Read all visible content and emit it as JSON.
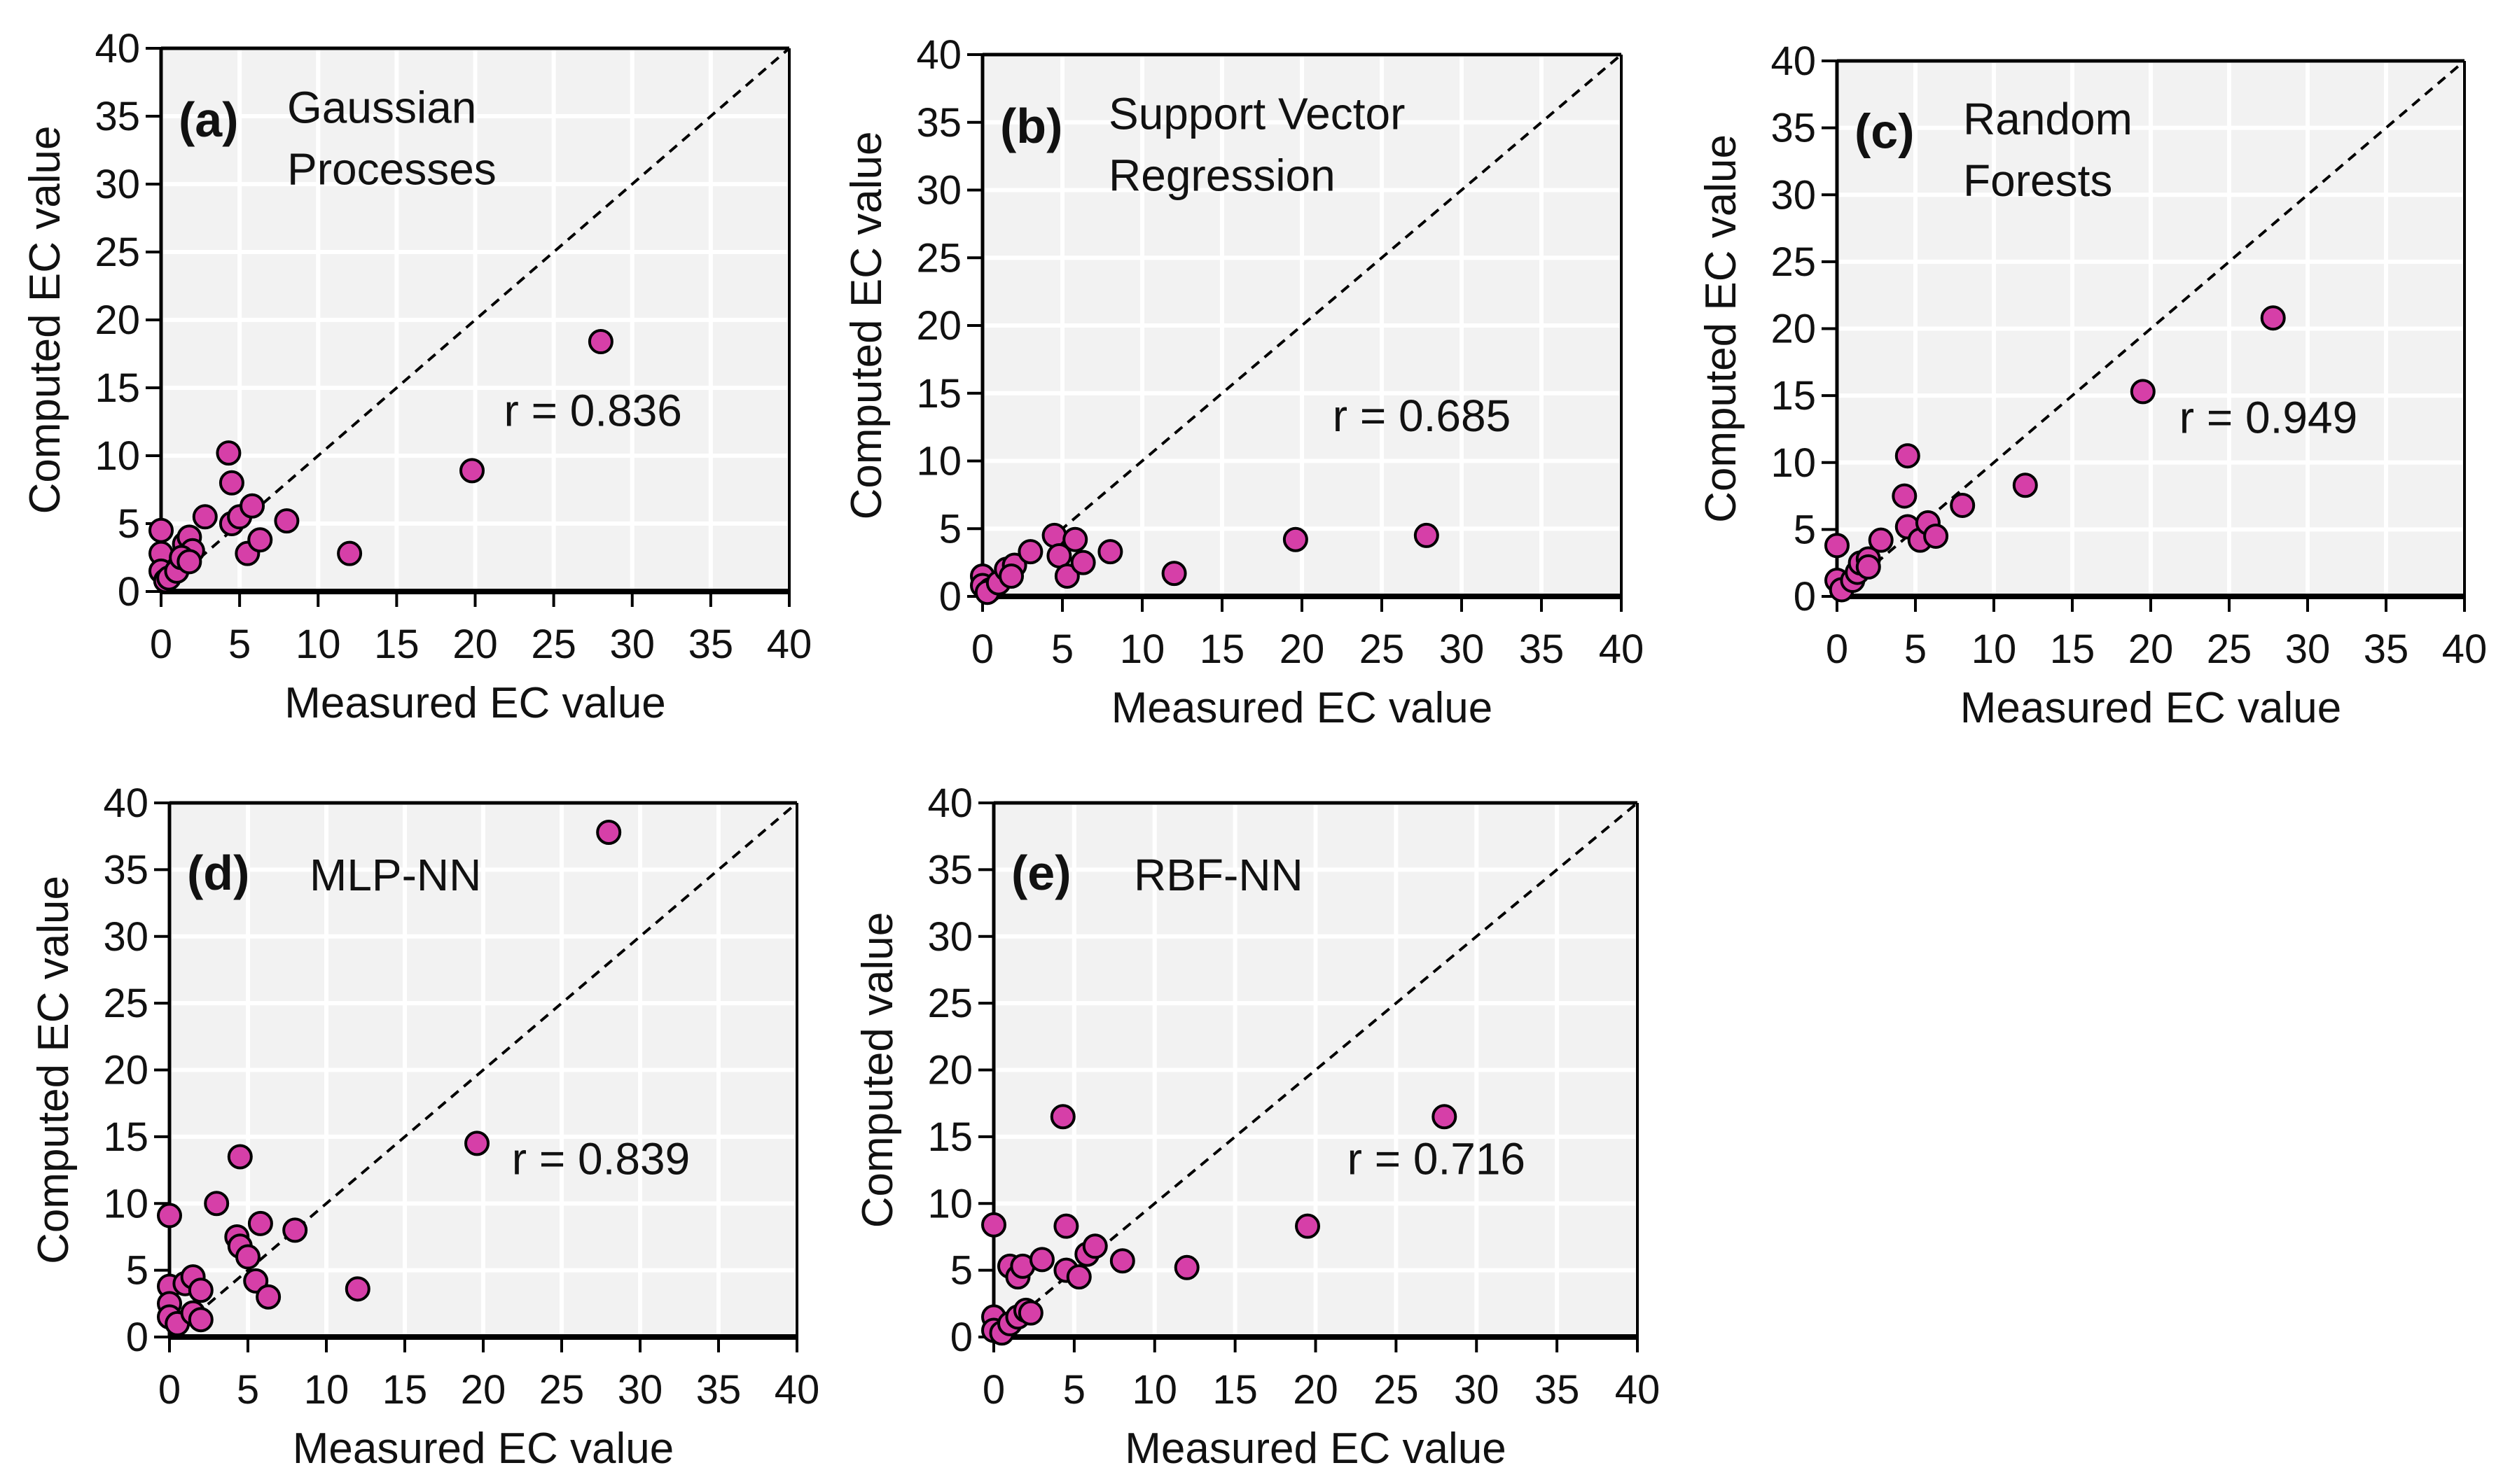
{
  "chart_data": [
    {
      "type": "scatter",
      "panel": "(a)",
      "title_lines": [
        "Gaussian",
        "Processes"
      ],
      "r_label": "r = 0.836",
      "xlabel": "Measured EC value",
      "ylabel": "Computed EC value",
      "xlim": [
        0,
        40
      ],
      "ylim": [
        0,
        40
      ],
      "ticks": [
        0,
        5,
        10,
        15,
        20,
        25,
        30,
        35,
        40
      ],
      "reference_line": "y = x (dashed)",
      "grid": true,
      "points": [
        [
          0,
          4.5
        ],
        [
          0,
          2.8
        ],
        [
          0,
          1.5
        ],
        [
          0.3,
          0.8
        ],
        [
          0.5,
          1
        ],
        [
          1,
          1.5
        ],
        [
          1.5,
          3.5
        ],
        [
          1.8,
          4
        ],
        [
          2,
          3
        ],
        [
          1.3,
          2.5
        ],
        [
          1.8,
          2.2
        ],
        [
          2.8,
          5.5
        ],
        [
          4.3,
          10.2
        ],
        [
          4.5,
          8
        ],
        [
          4.5,
          5
        ],
        [
          5,
          5.5
        ],
        [
          5.5,
          2.8
        ],
        [
          5.8,
          6.3
        ],
        [
          6.3,
          3.8
        ],
        [
          8,
          5.2
        ],
        [
          12,
          2.8
        ],
        [
          19.8,
          8.9
        ],
        [
          28,
          18.4
        ]
      ]
    },
    {
      "type": "scatter",
      "panel": "(b)",
      "title_lines": [
        "Support Vector",
        "Regression"
      ],
      "r_label": "r = 0.685",
      "xlabel": "Measured EC value",
      "ylabel": "Computed EC value",
      "xlim": [
        0,
        40
      ],
      "ylim": [
        0,
        40
      ],
      "ticks": [
        0,
        5,
        10,
        15,
        20,
        25,
        30,
        35,
        40
      ],
      "reference_line": "y = x (dashed)",
      "grid": true,
      "points": [
        [
          0,
          1.5
        ],
        [
          0,
          0.8
        ],
        [
          0.5,
          0.5
        ],
        [
          0.3,
          0.3
        ],
        [
          1,
          1
        ],
        [
          1.5,
          2
        ],
        [
          2,
          2.3
        ],
        [
          1.8,
          1.5
        ],
        [
          3,
          3.3
        ],
        [
          4.5,
          4.5
        ],
        [
          4.8,
          3
        ],
        [
          5.3,
          1.5
        ],
        [
          5.8,
          4.2
        ],
        [
          6.3,
          2.5
        ],
        [
          8,
          3.3
        ],
        [
          12,
          1.7
        ],
        [
          19.6,
          4.2
        ],
        [
          27.8,
          4.5
        ]
      ]
    },
    {
      "type": "scatter",
      "panel": "(c)",
      "title_lines": [
        "Random",
        "Forests"
      ],
      "r_label": "r = 0.949",
      "xlabel": "Measured EC value",
      "ylabel": "Computed EC value",
      "xlim": [
        0,
        40
      ],
      "ylim": [
        0,
        40
      ],
      "ticks": [
        0,
        5,
        10,
        15,
        20,
        25,
        30,
        35,
        40
      ],
      "reference_line": "y = x (dashed)",
      "grid": true,
      "points": [
        [
          0,
          3.8
        ],
        [
          0,
          1.2
        ],
        [
          0.3,
          0.5
        ],
        [
          1,
          1.2
        ],
        [
          1.3,
          1.8
        ],
        [
          1.5,
          2.5
        ],
        [
          2,
          2.8
        ],
        [
          2,
          2.2
        ],
        [
          2.8,
          4.2
        ],
        [
          4.5,
          10.5
        ],
        [
          4.3,
          7.5
        ],
        [
          4.5,
          5.2
        ],
        [
          5.3,
          4.2
        ],
        [
          5.8,
          5.5
        ],
        [
          6.3,
          4.5
        ],
        [
          8,
          6.8
        ],
        [
          12,
          8.3
        ],
        [
          19.5,
          15.3
        ],
        [
          27.8,
          20.8
        ]
      ]
    },
    {
      "type": "scatter",
      "panel": "(d)",
      "title_lines": [
        "MLP-NN"
      ],
      "r_label": "r = 0.839",
      "xlabel": "Measured EC value",
      "ylabel": "Computed EC value",
      "xlim": [
        0,
        40
      ],
      "ylim": [
        0,
        40
      ],
      "ticks": [
        0,
        5,
        10,
        15,
        20,
        25,
        30,
        35,
        40
      ],
      "reference_line": "y = x (dashed)",
      "grid": true,
      "points": [
        [
          0,
          9.1
        ],
        [
          0,
          3.8
        ],
        [
          0,
          2.5
        ],
        [
          0,
          1.5
        ],
        [
          0.5,
          1
        ],
        [
          1,
          4
        ],
        [
          1.5,
          4.5
        ],
        [
          2,
          3.5
        ],
        [
          1.5,
          1.8
        ],
        [
          2,
          1.3
        ],
        [
          3,
          10
        ],
        [
          4.3,
          7.5
        ],
        [
          4.5,
          13.5
        ],
        [
          4.5,
          6.8
        ],
        [
          5,
          6
        ],
        [
          5.5,
          4.2
        ],
        [
          5.8,
          8.5
        ],
        [
          6.3,
          3
        ],
        [
          8,
          8
        ],
        [
          12,
          3.6
        ],
        [
          19.6,
          14.5
        ],
        [
          28,
          37.8
        ]
      ]
    },
    {
      "type": "scatter",
      "panel": "(e)",
      "title_lines": [
        "RBF-NN"
      ],
      "r_label": "r = 0.716",
      "xlabel": "Measured EC value",
      "ylabel": "Computed value",
      "xlim": [
        0,
        40
      ],
      "ylim": [
        0,
        40
      ],
      "ticks": [
        0,
        5,
        10,
        15,
        20,
        25,
        30,
        35,
        40
      ],
      "reference_line": "y = x (dashed)",
      "grid": true,
      "points": [
        [
          0,
          8.4
        ],
        [
          0,
          1.5
        ],
        [
          0,
          0.5
        ],
        [
          0.5,
          0.3
        ],
        [
          1,
          1
        ],
        [
          1.5,
          1.5
        ],
        [
          1,
          5.3
        ],
        [
          1.5,
          4.5
        ],
        [
          1.8,
          5.3
        ],
        [
          2,
          2
        ],
        [
          2.3,
          1.8
        ],
        [
          3,
          5.8
        ],
        [
          4.3,
          16.5
        ],
        [
          4.5,
          8.3
        ],
        [
          4.5,
          5
        ],
        [
          5.3,
          4.5
        ],
        [
          5.8,
          6.2
        ],
        [
          6.3,
          6.8
        ],
        [
          8,
          5.7
        ],
        [
          12,
          5.2
        ],
        [
          19.5,
          8.3
        ],
        [
          28,
          16.5
        ]
      ]
    }
  ],
  "colors": {
    "marker": "#d63fa8",
    "marker_edge": "#000000",
    "plot_bg": "#f2f2f2",
    "grid": "#ffffff"
  }
}
